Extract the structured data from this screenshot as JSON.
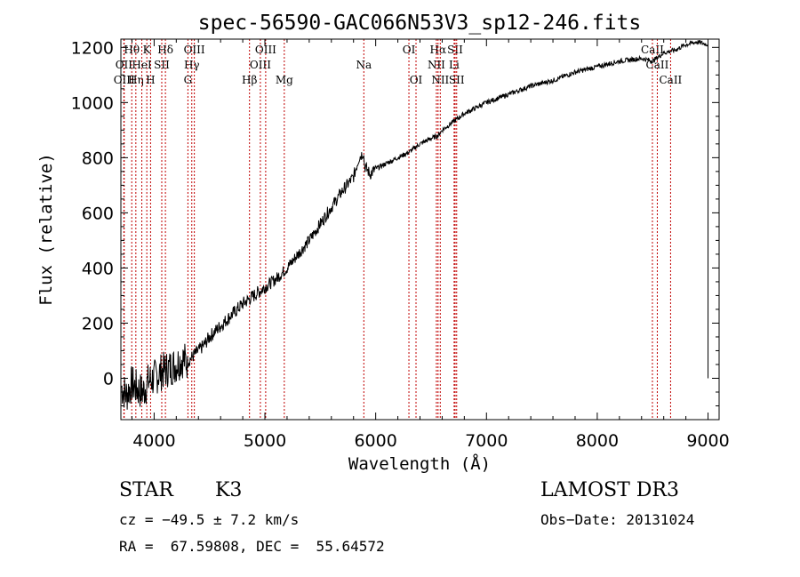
{
  "chart_data": {
    "type": "line",
    "title": "spec-56590-GAC066N53V3_sp12-246.fits",
    "xlabel": "Wavelength (Å)",
    "ylabel": "Flux (relative)",
    "xlim": [
      3700,
      9100
    ],
    "ylim": [
      -150,
      1230
    ],
    "xticks": [
      4000,
      5000,
      6000,
      7000,
      8000,
      9000
    ],
    "yticks": [
      0,
      200,
      400,
      600,
      800,
      1000,
      1200
    ],
    "series": [
      {
        "name": "spectrum",
        "x": [
          3700,
          3750,
          3800,
          3850,
          3900,
          3950,
          4000,
          4050,
          4100,
          4150,
          4200,
          4250,
          4300,
          4350,
          4400,
          4450,
          4500,
          4600,
          4700,
          4800,
          4900,
          5000,
          5100,
          5200,
          5300,
          5400,
          5500,
          5600,
          5700,
          5800,
          5850,
          5890,
          5900,
          5950,
          6000,
          6100,
          6200,
          6300,
          6400,
          6500,
          6563,
          6600,
          6700,
          6800,
          6900,
          7000,
          7200,
          7400,
          7600,
          7800,
          8000,
          8200,
          8400,
          8500,
          8600,
          8700,
          8800,
          8900,
          9000
        ],
        "y": [
          -30,
          -60,
          -20,
          -40,
          -50,
          -10,
          0,
          20,
          30,
          40,
          50,
          70,
          60,
          80,
          100,
          120,
          150,
          190,
          230,
          270,
          300,
          330,
          360,
          400,
          450,
          500,
          560,
          620,
          680,
          730,
          800,
          820,
          770,
          740,
          760,
          780,
          800,
          820,
          850,
          870,
          880,
          900,
          930,
          960,
          980,
          1000,
          1030,
          1060,
          1080,
          1110,
          1130,
          1150,
          1160,
          1150,
          1180,
          1190,
          1210,
          1220,
          1210
        ]
      }
    ],
    "emission_lines": [
      {
        "label": "Hθ",
        "x": 3798,
        "row": 0
      },
      {
        "label": "Hη",
        "x": 3835,
        "row": 2
      },
      {
        "label": "OII",
        "x": 3727,
        "row": 1
      },
      {
        "label": "OIII",
        "x": 3730,
        "row": 2
      },
      {
        "label": "K",
        "x": 3934,
        "row": 0
      },
      {
        "label": "H",
        "x": 3968,
        "row": 2
      },
      {
        "label": "HeI",
        "x": 3889,
        "row": 1
      },
      {
        "label": "Hδ",
        "x": 4102,
        "row": 0
      },
      {
        "label": "SII",
        "x": 4069,
        "row": 1
      },
      {
        "label": "OIII",
        "x": 4363,
        "row": 0
      },
      {
        "label": "Hγ",
        "x": 4340,
        "row": 1
      },
      {
        "label": "G",
        "x": 4305,
        "row": 2
      },
      {
        "label": "Hβ",
        "x": 4861,
        "row": 2
      },
      {
        "label": "OIII",
        "x": 4959,
        "row": 1
      },
      {
        "label": "OIII",
        "x": 5007,
        "row": 0
      },
      {
        "label": "Mg",
        "x": 5175,
        "row": 2
      },
      {
        "label": "Na",
        "x": 5893,
        "row": 1
      },
      {
        "label": "OI",
        "x": 6300,
        "row": 0
      },
      {
        "label": "OI",
        "x": 6364,
        "row": 2
      },
      {
        "label": "Hα",
        "x": 6563,
        "row": 0
      },
      {
        "label": "NII",
        "x": 6548,
        "row": 1
      },
      {
        "label": "NII",
        "x": 6583,
        "row": 2
      },
      {
        "label": "SII",
        "x": 6717,
        "row": 0
      },
      {
        "label": "Li",
        "x": 6708,
        "row": 1
      },
      {
        "label": "SII",
        "x": 6731,
        "row": 2
      },
      {
        "label": "CaII",
        "x": 8498,
        "row": 0
      },
      {
        "label": "CaII",
        "x": 8542,
        "row": 1
      },
      {
        "label": "CaII",
        "x": 8662,
        "row": 2
      }
    ]
  },
  "info": {
    "class": "STAR",
    "subclass": "K3",
    "survey": "LAMOST DR3",
    "cz": "cz = −49.5 ± 7.2 km/s",
    "obs_date": "Obs−Date: 20131024",
    "coords": "RA =  67.59808, DEC =  55.64572"
  }
}
